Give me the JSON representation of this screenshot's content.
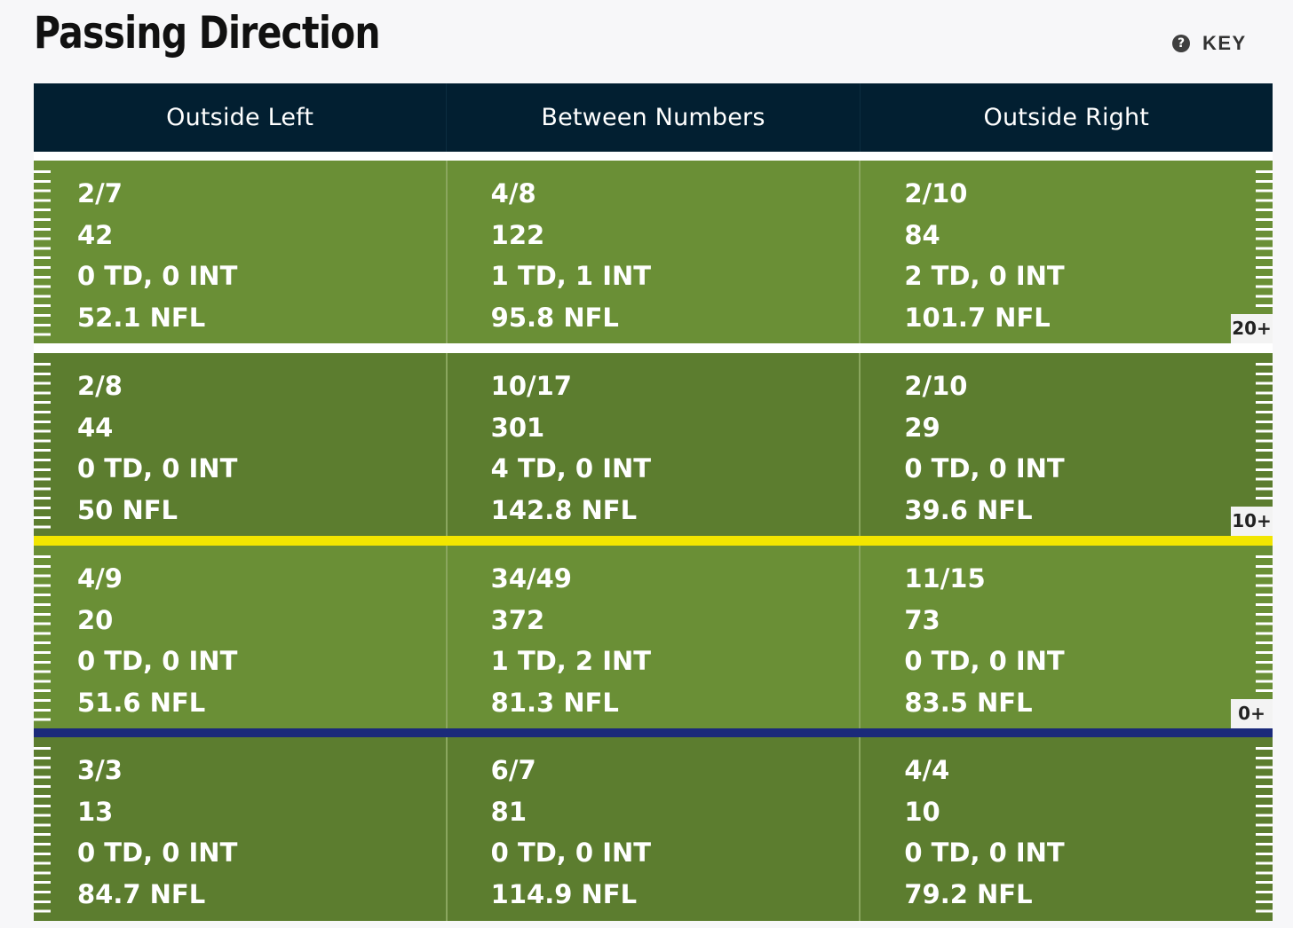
{
  "title": "Passing Direction",
  "key": {
    "icon": "question-circle-icon",
    "label": "KEY"
  },
  "columns": [
    "Outside Left",
    "Between Numbers",
    "Outside Right"
  ],
  "zones": [
    {
      "yard_marker": "20+",
      "cells": [
        {
          "comp_att": "2/7",
          "yards": "42",
          "td_int": "0 TD, 0 INT",
          "rating": "52.1 NFL"
        },
        {
          "comp_att": "4/8",
          "yards": "122",
          "td_int": "1 TD, 1 INT",
          "rating": "95.8 NFL"
        },
        {
          "comp_att": "2/10",
          "yards": "84",
          "td_int": "2 TD, 0 INT",
          "rating": "101.7 NFL"
        }
      ]
    },
    {
      "yard_marker": "10+",
      "cells": [
        {
          "comp_att": "2/8",
          "yards": "44",
          "td_int": "0 TD, 0 INT",
          "rating": "50 NFL"
        },
        {
          "comp_att": "10/17",
          "yards": "301",
          "td_int": "4 TD, 0 INT",
          "rating": "142.8 NFL"
        },
        {
          "comp_att": "2/10",
          "yards": "29",
          "td_int": "0 TD, 0 INT",
          "rating": "39.6 NFL"
        }
      ]
    },
    {
      "yard_marker": "0+",
      "cells": [
        {
          "comp_att": "4/9",
          "yards": "20",
          "td_int": "0 TD, 0 INT",
          "rating": "51.6 NFL"
        },
        {
          "comp_att": "34/49",
          "yards": "372",
          "td_int": "1 TD, 2 INT",
          "rating": "81.3 NFL"
        },
        {
          "comp_att": "11/15",
          "yards": "73",
          "td_int": "0 TD, 0 INT",
          "rating": "83.5 NFL"
        }
      ]
    },
    {
      "yard_marker": "",
      "cells": [
        {
          "comp_att": "3/3",
          "yards": "13",
          "td_int": "0 TD, 0 INT",
          "rating": "84.7 NFL"
        },
        {
          "comp_att": "6/7",
          "yards": "81",
          "td_int": "0 TD, 0 INT",
          "rating": "114.9 NFL"
        },
        {
          "comp_att": "4/4",
          "yards": "10",
          "td_int": "0 TD, 0 INT",
          "rating": "79.2 NFL"
        }
      ]
    }
  ],
  "colors": {
    "header_bg": "#021f31",
    "zone_light": "#6a8f36",
    "zone_dark": "#5c7d2f",
    "first_down_line": "#f2e600",
    "line_of_scrimmage": "#1b2a7a"
  }
}
